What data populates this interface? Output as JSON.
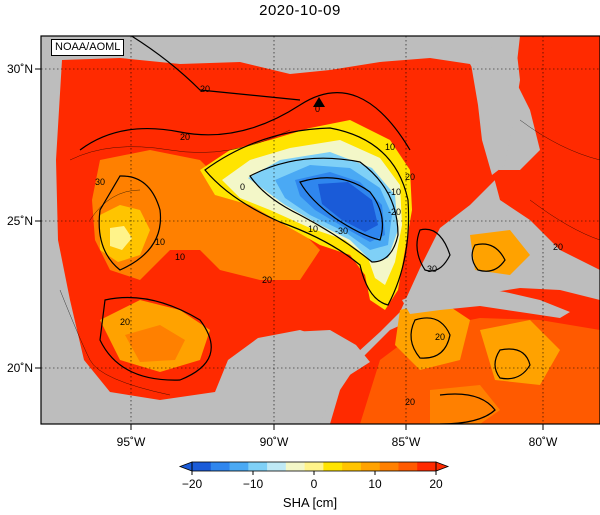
{
  "title": "2020-10-09",
  "credit": "NOAA/AOML",
  "axes": {
    "x_ticks": [
      {
        "value": -95,
        "label": "95˚W"
      },
      {
        "value": -90,
        "label": "90˚W"
      },
      {
        "value": -85,
        "label": "85˚W"
      },
      {
        "value": -80,
        "label": "80˚W"
      }
    ],
    "y_ticks": [
      {
        "value": 30,
        "label": "30˚N"
      },
      {
        "value": 25,
        "label": "25˚N"
      },
      {
        "value": 20,
        "label": "20˚N"
      }
    ]
  },
  "contour_labels": [
    "0",
    "-10",
    "-20",
    "-30",
    "10",
    "20",
    "30"
  ],
  "colorbar": {
    "label": "SHA [cm]",
    "range": [
      -20,
      20
    ],
    "ticks": [
      "−20",
      "−10",
      "0",
      "10",
      "20"
    ],
    "colors": [
      "#1a5bd8",
      "#2f86ee",
      "#4aa9f4",
      "#7fd0f7",
      "#bfe9f6",
      "#f3f7c8",
      "#fff38a",
      "#ffe400",
      "#ffc400",
      "#ffa200",
      "#ff8000",
      "#ff5a00",
      "#ff2a00"
    ]
  },
  "chart_data": {
    "type": "heatmap",
    "title": "2020-10-09",
    "variable": "SHA [cm]",
    "value_range": [
      -20,
      20
    ],
    "xlim": [
      -98.5,
      -78
    ],
    "ylim": [
      18,
      31
    ]
  }
}
